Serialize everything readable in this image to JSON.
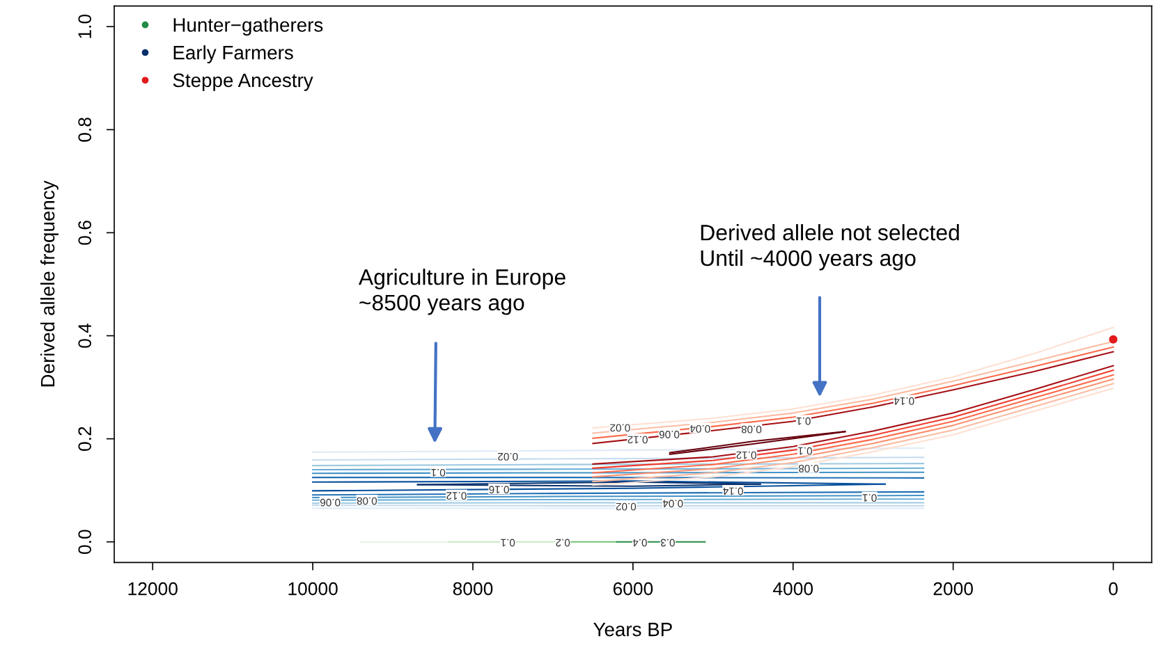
{
  "chart_data": {
    "type": "line",
    "xlabel": "Years BP",
    "ylabel": "Derived allele frequency",
    "xlim": [
      12480,
      -480
    ],
    "ylim": [
      -0.04,
      1.04
    ],
    "xticks": [
      12000,
      10000,
      8000,
      6000,
      4000,
      2000,
      0
    ],
    "yticks": [
      {
        "value": 0,
        "label": "0.0"
      },
      {
        "value": 0.2,
        "label": "0.2"
      },
      {
        "value": 0.4,
        "label": "0.4"
      },
      {
        "value": 0.6,
        "label": "0.6"
      },
      {
        "value": 0.8,
        "label": "0.8"
      },
      {
        "value": 1,
        "label": "1.0"
      }
    ],
    "grid": false,
    "legend": "top left",
    "line_style": "solid",
    "series": [
      {
        "color": "#e5f5e0",
        "x": [
          9400,
          8300
        ],
        "values": [
          0,
          0
        ]
      },
      {
        "color": "#c7e9c0",
        "x": [
          8300,
          6900
        ],
        "values": [
          0,
          0
        ]
      },
      {
        "color": "#74c476",
        "x": [
          6900,
          6200
        ],
        "values": [
          0,
          0
        ]
      },
      {
        "name": "Hunter−gatherers",
        "color": "#238b45",
        "x": [
          6200,
          5100
        ],
        "values": [
          0,
          0
        ]
      },
      {
        "color": "#deebf7",
        "x": [
          10000,
          7000,
          2370
        ],
        "values": [
          0.174,
          0.177,
          0.182
        ]
      },
      {
        "color": "#c6dbef",
        "x": [
          10000,
          7000,
          2370
        ],
        "values": [
          0.159,
          0.161,
          0.164
        ]
      },
      {
        "color": "#9ecae1",
        "x": [
          10000,
          7000,
          2370
        ],
        "values": [
          0.148,
          0.15,
          0.152
        ]
      },
      {
        "color": "#6baed6",
        "x": [
          10000,
          7000,
          2370
        ],
        "values": [
          0.14,
          0.141,
          0.143
        ]
      },
      {
        "color": "#4292c6",
        "x": [
          10000,
          7000,
          2370
        ],
        "values": [
          0.133,
          0.134,
          0.135
        ]
      },
      {
        "color": "#2171b5",
        "x": [
          10000,
          7000,
          2370
        ],
        "values": [
          0.125,
          0.125,
          0.124
        ]
      },
      {
        "color": "#deebf7",
        "x": [
          10000,
          7000,
          2370
        ],
        "values": [
          0.065,
          0.065,
          0.065
        ]
      },
      {
        "color": "#c6dbef",
        "x": [
          10000,
          7000,
          2370
        ],
        "values": [
          0.071,
          0.07,
          0.07
        ]
      },
      {
        "color": "#9ecae1",
        "x": [
          10000,
          7000,
          2370
        ],
        "values": [
          0.075,
          0.076,
          0.076
        ]
      },
      {
        "color": "#6baed6",
        "x": [
          10000,
          7000,
          2370
        ],
        "values": [
          0.081,
          0.082,
          0.083
        ]
      },
      {
        "color": "#4292c6",
        "x": [
          10000,
          7000,
          2370
        ],
        "values": [
          0.086,
          0.088,
          0.09
        ]
      },
      {
        "color": "#2171b5",
        "x": [
          10000,
          7000,
          2370
        ],
        "values": [
          0.091,
          0.094,
          0.097
        ]
      },
      {
        "color": "#08519c",
        "x": [
          10000,
          6000,
          2850
        ],
        "values": [
          0.116,
          0.118,
          0.112
        ]
      },
      {
        "color": "#08519c",
        "x": [
          10000,
          6000,
          2850
        ],
        "values": [
          0.099,
          0.104,
          0.112
        ]
      },
      {
        "name": "Early Farmers",
        "color": "#08306b",
        "x": [
          8690,
          6000,
          4410
        ],
        "values": [
          0.111,
          0.116,
          0.112
        ]
      },
      {
        "color": "#08306b",
        "x": [
          8690,
          6000,
          4410
        ],
        "values": [
          0.111,
          0.108,
          0.112
        ]
      },
      {
        "color": "#fee0d2",
        "x": [
          6500,
          5000,
          4000,
          3000,
          2000,
          1000,
          0
        ],
        "values": [
          0.221,
          0.24,
          0.258,
          0.285,
          0.32,
          0.365,
          0.416
        ]
      },
      {
        "color": "#fcbba1",
        "x": [
          6500,
          5000,
          4000,
          3000,
          2000,
          1000,
          0
        ],
        "values": [
          0.211,
          0.232,
          0.25,
          0.277,
          0.312,
          0.35,
          0.389
        ]
      },
      {
        "color": "#fb6a4a",
        "x": [
          6500,
          5000,
          4000,
          3000,
          2000,
          1000,
          0
        ],
        "values": [
          0.201,
          0.224,
          0.242,
          0.269,
          0.303,
          0.34,
          0.378
        ]
      },
      {
        "color": "#a50f15",
        "x": [
          6500,
          5000,
          4000,
          3000,
          2000,
          1000,
          0
        ],
        "values": [
          0.191,
          0.216,
          0.234,
          0.262,
          0.295,
          0.33,
          0.369
        ]
      },
      {
        "color": "#a50f15",
        "x": [
          6500,
          5000,
          4000,
          3000,
          2000,
          1000,
          0
        ],
        "values": [
          0.151,
          0.165,
          0.185,
          0.215,
          0.25,
          0.295,
          0.342
        ]
      },
      {
        "color": "#ef3b2c",
        "x": [
          6500,
          5000,
          4000,
          3000,
          2000,
          1000,
          0
        ],
        "values": [
          0.143,
          0.158,
          0.178,
          0.207,
          0.242,
          0.287,
          0.333
        ]
      },
      {
        "color": "#fb6a4a",
        "x": [
          6500,
          5000,
          4000,
          3000,
          2000,
          1000,
          0
        ],
        "values": [
          0.134,
          0.15,
          0.17,
          0.199,
          0.234,
          0.279,
          0.324
        ]
      },
      {
        "color": "#fc9272",
        "x": [
          6500,
          5000,
          4000,
          3000,
          2000,
          1000,
          0
        ],
        "values": [
          0.126,
          0.142,
          0.162,
          0.191,
          0.226,
          0.271,
          0.316
        ]
      },
      {
        "color": "#fcbba1",
        "x": [
          6500,
          5000,
          4000,
          3000,
          2000,
          1000,
          0
        ],
        "values": [
          0.117,
          0.134,
          0.154,
          0.183,
          0.217,
          0.262,
          0.307
        ]
      },
      {
        "color": "#fee0d2",
        "x": [
          6500,
          5000,
          4000,
          3000,
          2000,
          1000,
          0
        ],
        "values": [
          0.11,
          0.126,
          0.146,
          0.175,
          0.208,
          0.253,
          0.298
        ]
      },
      {
        "color": "#67000d",
        "x": [
          5540,
          4500,
          3350
        ],
        "values": [
          0.173,
          0.195,
          0.214
        ]
      },
      {
        "color": "#67000d",
        "x": [
          5540,
          4500,
          3350
        ],
        "values": [
          0.17,
          0.19,
          0.214
        ]
      },
      {
        "type": "scatter",
        "marker": "circle",
        "name": "Steppe Ancestry",
        "color": "#e31a1c",
        "x": [
          0
        ],
        "values": [
          0.393
        ]
      }
    ],
    "annotations": [
      "Agriculture in Europe\n~8500 years ago",
      "Derived allele not selected\nUntil ~4000 years ago",
      {
        "text": "0.02",
        "x": 7563,
        "y": 0.167
      },
      {
        "text": "0.1",
        "x": 8434,
        "y": 0.136
      },
      {
        "text": "0.16",
        "x": 7673,
        "y": 0.103
      },
      {
        "text": "0.12",
        "x": 8205,
        "y": 0.091
      },
      {
        "text": "0.08",
        "x": 9324,
        "y": 0.081
      },
      {
        "text": "0.06",
        "x": 9782,
        "y": 0.078
      },
      {
        "text": "0.14",
        "x": 4749,
        "y": 0.1
      },
      {
        "text": "0.1",
        "x": 3044,
        "y": 0.087
      },
      {
        "text": "0.08",
        "x": 3805,
        "y": 0.144
      },
      {
        "text": "0.04",
        "x": 5501,
        "y": 0.076
      },
      {
        "text": "0.02",
        "x": 6087,
        "y": 0.07
      },
      {
        "text": "0.02",
        "x": 6161,
        "y": 0.223
      },
      {
        "text": "0.06",
        "x": 5546,
        "y": 0.21
      },
      {
        "text": "0.04",
        "x": 5161,
        "y": 0.221
      },
      {
        "text": "0.08",
        "x": 4520,
        "y": 0.22
      },
      {
        "text": "0.1",
        "x": 3869,
        "y": 0.236
      },
      {
        "text": "0.14",
        "x": 2613,
        "y": 0.275
      },
      {
        "text": "0.12",
        "x": 5941,
        "y": 0.2
      },
      {
        "text": "0.12",
        "x": 4584,
        "y": 0.17
      },
      {
        "text": "0.1",
        "x": 3850,
        "y": 0.178
      },
      {
        "text": "0.1",
        "x": 7563,
        "y": 0
      },
      {
        "text": "0.2",
        "x": 6876,
        "y": 0
      },
      {
        "text": "0.4",
        "x": 5913,
        "y": 0
      },
      {
        "text": "0.3",
        "x": 5565,
        "y": 0
      }
    ]
  }
}
